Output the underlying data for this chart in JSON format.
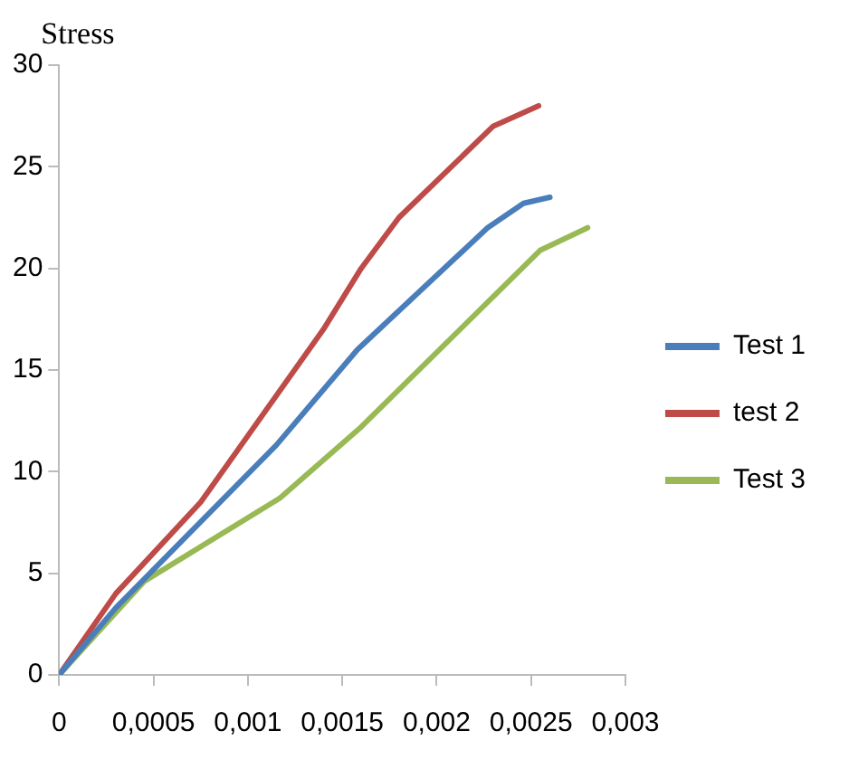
{
  "chart_data": {
    "type": "line",
    "ylabel": "Stress",
    "xlim": [
      0,
      0.003
    ],
    "xticks": [
      0,
      {
        "value": 0.0005,
        "label": "0,0005"
      },
      {
        "value": 0.001,
        "label": "0,001"
      },
      {
        "value": 0.0015,
        "label": "0,0015"
      },
      {
        "value": 0.002,
        "label": "0,002"
      },
      {
        "value": 0.0025,
        "label": "0,0025"
      },
      {
        "value": 0.003,
        "label": "0,003"
      }
    ],
    "ylim": [
      0,
      30
    ],
    "yticks": [
      0,
      5,
      10,
      15,
      20,
      25,
      30
    ],
    "grid": false,
    "legend": "right",
    "marker": "none",
    "line_style": "solid",
    "series": [
      {
        "name": "Test 1",
        "color": "#4a7ebb",
        "x": [
          0,
          0.0003,
          0.00115,
          0.00158,
          0.00227,
          0.00246,
          0.0026
        ],
        "values": [
          0,
          3.3,
          11.3,
          16,
          22,
          23.2,
          23.5
        ]
      },
      {
        "name": "test 2",
        "color": "#be4b48",
        "x": [
          0,
          0.0003,
          0.00075,
          0.0014,
          0.0016,
          0.0018,
          0.0023,
          0.00254
        ],
        "values": [
          0,
          4,
          8.5,
          17,
          20,
          22.5,
          27,
          28
        ]
      },
      {
        "name": "Test 3",
        "color": "#98b954",
        "x": [
          0,
          0.00045,
          0.00117,
          0.0016,
          0.00255,
          0.0028
        ],
        "values": [
          0,
          4.6,
          8.7,
          12.2,
          20.9,
          22
        ]
      }
    ]
  }
}
